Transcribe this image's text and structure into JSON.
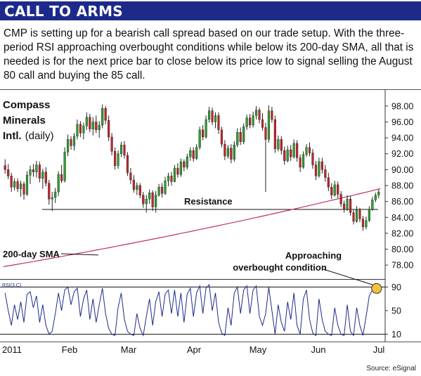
{
  "banner": {
    "title": "CALL TO ARMS"
  },
  "intro": "CMP is setting up for a bearish call spread based on our trade setup. With the three-period RSI approaching overbought conditions while below its 200-day SMA, all that is needed is for the next price bar to close below its price low to signal selling the August 80 call and buying the 85 call.",
  "source": "Source: eSignal",
  "colors": {
    "banner": "#1d2a8a",
    "up": "#2e9c2e",
    "down": "#c0262c",
    "sma": "#c0306a",
    "highlight": "#f3c33c"
  },
  "chart_data": {
    "type": "candlestick",
    "title_lines": [
      "Compass",
      "Minerals",
      "Intl."
    ],
    "title_suffix": "(daily)",
    "y_ticks": [
      "98.00",
      "96.00",
      "94.00",
      "92.00",
      "90.00",
      "88.00",
      "86.00",
      "84.00",
      "82.00",
      "80.00",
      "78.00"
    ],
    "ylim": [
      76.6,
      99.4
    ],
    "x_labels": [
      "2011",
      "Feb",
      "Mar",
      "Apr",
      "May",
      "Jun",
      "Jul"
    ],
    "resistance": {
      "label": "Resistance",
      "value": 85.0
    },
    "sma": {
      "label": "200-day SMA",
      "start": 77.8,
      "end": 87.6
    },
    "ohlc": [
      [
        90.5,
        91.3,
        89.5,
        90.0
      ],
      [
        90.0,
        90.7,
        88.8,
        89.2
      ],
      [
        89.2,
        89.6,
        87.2,
        87.8
      ],
      [
        87.8,
        88.9,
        87.4,
        88.5
      ],
      [
        88.5,
        88.9,
        87.2,
        87.6
      ],
      [
        87.6,
        88.6,
        86.6,
        88.2
      ],
      [
        88.2,
        88.5,
        86.2,
        86.9
      ],
      [
        86.9,
        89.8,
        86.7,
        89.3
      ],
      [
        89.3,
        90.5,
        88.2,
        90.0
      ],
      [
        90.0,
        90.7,
        89.1,
        89.7
      ],
      [
        89.7,
        91.1,
        89.0,
        90.6
      ],
      [
        90.6,
        91.0,
        88.4,
        88.9
      ],
      [
        88.9,
        90.1,
        87.6,
        89.7
      ],
      [
        89.7,
        90.3,
        87.9,
        88.3
      ],
      [
        88.3,
        88.7,
        85.6,
        86.3
      ],
      [
        86.3,
        87.2,
        84.8,
        86.5
      ],
      [
        86.5,
        87.7,
        85.8,
        87.2
      ],
      [
        87.2,
        89.8,
        86.7,
        89.4
      ],
      [
        89.4,
        90.6,
        88.3,
        88.6
      ],
      [
        88.6,
        92.8,
        88.4,
        92.2
      ],
      [
        92.2,
        94.4,
        91.7,
        93.8
      ],
      [
        93.8,
        94.2,
        92.5,
        93.0
      ],
      [
        93.0,
        94.6,
        92.4,
        94.2
      ],
      [
        94.2,
        96.3,
        93.8,
        95.7
      ],
      [
        95.7,
        96.1,
        94.1,
        94.6
      ],
      [
        94.6,
        95.9,
        93.8,
        95.5
      ],
      [
        95.5,
        97.2,
        95.0,
        96.6
      ],
      [
        96.6,
        97.0,
        94.7,
        95.1
      ],
      [
        95.1,
        96.6,
        94.3,
        96.0
      ],
      [
        96.0,
        96.8,
        94.6,
        95.0
      ],
      [
        95.0,
        96.1,
        94.0,
        95.6
      ],
      [
        95.6,
        98.2,
        95.2,
        97.7
      ],
      [
        97.7,
        98.0,
        95.7,
        96.2
      ],
      [
        96.2,
        96.8,
        93.6,
        94.1
      ],
      [
        94.1,
        94.6,
        91.8,
        92.3
      ],
      [
        92.3,
        92.8,
        90.0,
        90.5
      ],
      [
        90.5,
        92.4,
        90.1,
        92.0
      ],
      [
        92.0,
        93.5,
        91.6,
        93.1
      ],
      [
        93.1,
        93.6,
        91.4,
        91.8
      ],
      [
        91.8,
        92.2,
        89.2,
        89.6
      ],
      [
        89.6,
        90.2,
        88.2,
        88.7
      ],
      [
        88.7,
        89.3,
        87.1,
        87.5
      ],
      [
        87.5,
        88.4,
        86.8,
        88.0
      ],
      [
        88.0,
        88.3,
        86.4,
        86.8
      ],
      [
        86.8,
        87.2,
        85.2,
        85.7
      ],
      [
        85.7,
        86.8,
        84.6,
        86.3
      ],
      [
        86.3,
        87.5,
        85.7,
        87.1
      ],
      [
        87.1,
        87.4,
        84.8,
        85.3
      ],
      [
        85.3,
        87.3,
        84.6,
        86.8
      ],
      [
        86.8,
        88.2,
        86.6,
        87.8
      ],
      [
        87.8,
        88.3,
        86.5,
        87.0
      ],
      [
        87.0,
        89.1,
        86.8,
        88.6
      ],
      [
        88.6,
        89.6,
        87.9,
        89.2
      ],
      [
        89.2,
        89.7,
        88.0,
        88.5
      ],
      [
        88.5,
        90.6,
        88.4,
        90.2
      ],
      [
        90.2,
        90.8,
        89.0,
        89.4
      ],
      [
        89.4,
        91.4,
        89.1,
        91.0
      ],
      [
        91.0,
        91.3,
        89.8,
        90.3
      ],
      [
        90.3,
        92.0,
        90.0,
        91.6
      ],
      [
        91.6,
        92.8,
        91.1,
        92.4
      ],
      [
        92.4,
        92.8,
        91.0,
        91.4
      ],
      [
        91.4,
        93.2,
        91.2,
        92.8
      ],
      [
        92.8,
        95.4,
        92.5,
        95.0
      ],
      [
        95.0,
        95.6,
        93.7,
        94.1
      ],
      [
        94.1,
        96.8,
        93.9,
        96.3
      ],
      [
        96.3,
        97.9,
        95.9,
        97.4
      ],
      [
        97.4,
        97.8,
        95.6,
        96.0
      ],
      [
        96.0,
        97.2,
        95.2,
        96.8
      ],
      [
        96.8,
        97.2,
        94.5,
        95.0
      ],
      [
        95.0,
        95.4,
        92.8,
        93.2
      ],
      [
        93.2,
        93.7,
        91.2,
        91.7
      ],
      [
        91.7,
        93.1,
        91.4,
        92.7
      ],
      [
        92.7,
        93.2,
        90.8,
        91.3
      ],
      [
        91.3,
        93.6,
        91.0,
        93.1
      ],
      [
        93.1,
        95.2,
        92.8,
        94.7
      ],
      [
        94.7,
        95.3,
        93.1,
        93.5
      ],
      [
        93.5,
        95.8,
        93.2,
        95.4
      ],
      [
        95.4,
        96.9,
        95.0,
        96.5
      ],
      [
        96.5,
        97.0,
        95.2,
        95.6
      ],
      [
        95.6,
        97.3,
        95.3,
        96.8
      ],
      [
        96.8,
        98.0,
        96.3,
        97.5
      ],
      [
        97.5,
        97.8,
        95.8,
        96.3
      ],
      [
        96.3,
        97.1,
        94.9,
        95.3
      ],
      [
        95.3,
        95.9,
        87.2,
        93.8
      ],
      [
        93.8,
        98.1,
        93.4,
        97.4
      ],
      [
        97.4,
        97.9,
        95.9,
        96.3
      ],
      [
        96.3,
        96.8,
        92.1,
        92.6
      ],
      [
        92.6,
        94.3,
        92.3,
        93.8
      ],
      [
        93.8,
        94.2,
        91.9,
        92.4
      ],
      [
        92.4,
        92.9,
        90.6,
        91.1
      ],
      [
        91.1,
        93.0,
        90.9,
        92.5
      ],
      [
        92.5,
        93.1,
        91.1,
        91.6
      ],
      [
        91.6,
        93.8,
        91.4,
        93.3
      ],
      [
        93.3,
        93.7,
        91.0,
        91.5
      ],
      [
        91.5,
        91.9,
        89.7,
        90.3
      ],
      [
        90.3,
        92.3,
        90.1,
        91.9
      ],
      [
        91.9,
        93.2,
        91.6,
        92.8
      ],
      [
        92.8,
        93.4,
        91.7,
        92.1
      ],
      [
        92.1,
        92.6,
        90.1,
        90.6
      ],
      [
        90.6,
        91.1,
        88.7,
        89.2
      ],
      [
        89.2,
        91.5,
        89.0,
        91.0
      ],
      [
        91.0,
        91.5,
        89.5,
        90.0
      ],
      [
        90.0,
        90.6,
        88.5,
        89.0
      ],
      [
        89.0,
        89.6,
        87.3,
        87.8
      ],
      [
        87.8,
        88.3,
        86.3,
        86.8
      ],
      [
        86.8,
        88.6,
        86.6,
        88.1
      ],
      [
        88.1,
        88.5,
        86.4,
        86.9
      ],
      [
        86.9,
        87.3,
        85.3,
        85.7
      ],
      [
        85.7,
        86.1,
        84.6,
        85.0
      ],
      [
        85.0,
        86.8,
        84.8,
        86.3
      ],
      [
        86.3,
        86.7,
        84.2,
        84.6
      ],
      [
        84.6,
        85.0,
        83.1,
        83.5
      ],
      [
        83.5,
        85.4,
        83.3,
        84.9
      ],
      [
        84.9,
        85.2,
        83.4,
        83.8
      ],
      [
        83.8,
        84.2,
        82.3,
        82.8
      ],
      [
        82.8,
        84.1,
        82.5,
        83.6
      ],
      [
        83.6,
        85.4,
        83.4,
        85.0
      ],
      [
        85.0,
        86.6,
        84.8,
        86.2
      ],
      [
        86.2,
        87.1,
        85.9,
        86.8
      ],
      [
        86.8,
        87.5,
        86.4,
        87.2
      ]
    ],
    "rsi": {
      "label": "RSI(3,C)",
      "ticks": [
        90,
        50,
        10
      ],
      "ylim": [
        0,
        100
      ],
      "values": [
        80,
        50,
        25,
        60,
        35,
        65,
        30,
        78,
        82,
        55,
        75,
        30,
        60,
        25,
        10,
        15,
        45,
        80,
        50,
        85,
        90,
        60,
        82,
        88,
        40,
        70,
        85,
        35,
        70,
        30,
        60,
        88,
        45,
        20,
        10,
        8,
        55,
        80,
        35,
        15,
        10,
        8,
        45,
        20,
        8,
        40,
        70,
        25,
        65,
        82,
        40,
        78,
        85,
        45,
        85,
        40,
        80,
        30,
        78,
        88,
        40,
        80,
        92,
        45,
        88,
        94,
        50,
        80,
        30,
        12,
        8,
        55,
        25,
        80,
        90,
        45,
        85,
        92,
        45,
        85,
        92,
        40,
        25,
        45,
        90,
        50,
        10,
        60,
        30,
        15,
        65,
        35,
        80,
        25,
        10,
        70,
        85,
        35,
        12,
        8,
        70,
        35,
        15,
        10,
        8,
        55,
        25,
        10,
        8,
        60,
        15,
        8,
        55,
        25,
        8,
        40,
        75,
        85,
        88,
        90
      ]
    },
    "annotations": [
      {
        "text": "Approaching",
        "text2": "overbought condition"
      }
    ]
  }
}
